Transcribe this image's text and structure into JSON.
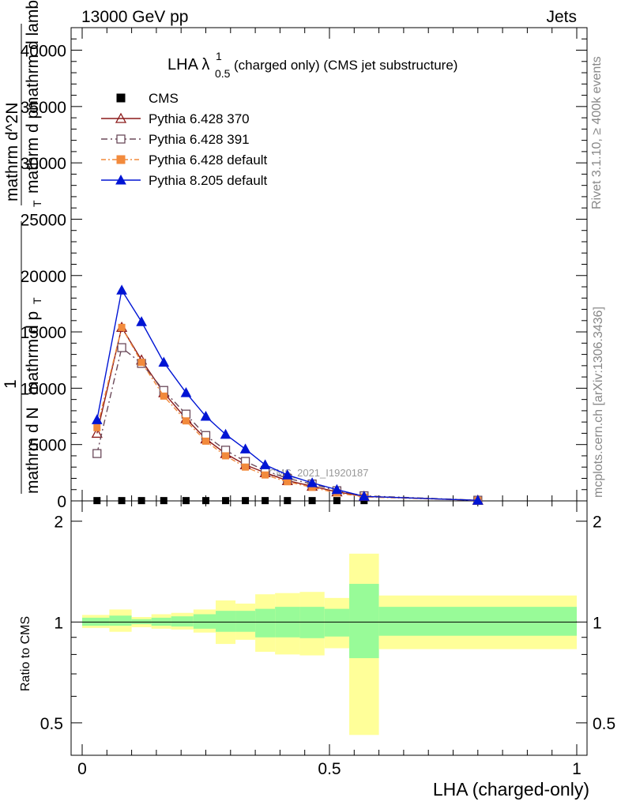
{
  "header": {
    "left": "13000 GeV pp",
    "right": "Jets"
  },
  "side_labels": {
    "rivet": "Rivet 3.1.10, ≥ 400k events",
    "mcplots": "mcplots.cern.ch [arXiv:1306.3436]"
  },
  "watermark": "CMS_2021_I1920187",
  "colors": {
    "cms": "#000000",
    "p6_370": "#8b1a1a",
    "p6_391": "#6b4a5a",
    "p6_default": "#f28a3c",
    "p8_default": "#0015d4",
    "band_inner": "#98fb98",
    "band_outer": "#ffff99"
  },
  "chart_data": [
    {
      "type": "line",
      "title": "LHA λ",
      "title_sup": "1",
      "title_sub": "0.5",
      "title_rest": " (charged only) (CMS jet substructure)",
      "ylabel_lines": [
        "1",
        "mathrm d N",
        "mathrm d p",
        "mathrm d p",
        "mathrm d^2N",
        "mathrm d lambda",
        "T",
        "T"
      ],
      "ylabel_display": [
        "mathrm d^{2}N",
        "mathrm d p_{T} mathrm d lambda",
        "1",
        "mathrm d N mathrm d p_{T}"
      ],
      "xlim": [
        0,
        1
      ],
      "ylim": [
        0,
        42000
      ],
      "yticks": [
        0,
        5000,
        10000,
        15000,
        20000,
        25000,
        30000,
        35000,
        40000
      ],
      "ytick_labels": [
        "0",
        "5000",
        "10000",
        "15000",
        "20000",
        "25000",
        "30000",
        "35000",
        "40000"
      ],
      "legend_position": "top-left",
      "x": [
        0.03,
        0.08,
        0.12,
        0.165,
        0.21,
        0.25,
        0.29,
        0.33,
        0.37,
        0.415,
        0.465,
        0.515,
        0.57,
        0.8
      ],
      "series": [
        {
          "name": "CMS",
          "marker": "square-filled",
          "values": [
            25,
            25,
            25,
            25,
            25,
            25,
            25,
            25,
            25,
            25,
            25,
            25,
            25,
            25
          ]
        },
        {
          "name": "Pythia 6.428 370",
          "marker": "triangle-open",
          "values": [
            6000,
            15400,
            12500,
            9600,
            7300,
            5500,
            4200,
            3200,
            2500,
            1800,
            1300,
            800,
            400,
            50
          ]
        },
        {
          "name": "Pythia 6.428 391",
          "marker": "square-open",
          "values": [
            4200,
            13600,
            12200,
            9800,
            7700,
            5800,
            4500,
            3500,
            2700,
            2000,
            1500,
            900,
            450,
            60
          ]
        },
        {
          "name": "Pythia 6.428 default",
          "marker": "square-filled",
          "values": [
            6500,
            15400,
            12300,
            9300,
            7100,
            5300,
            4000,
            3000,
            2300,
            1700,
            1200,
            700,
            350,
            40
          ]
        },
        {
          "name": "Pythia 8.205 default",
          "marker": "triangle-filled",
          "values": [
            7200,
            18700,
            15900,
            12300,
            9600,
            7500,
            5900,
            4600,
            3200,
            2300,
            1600,
            1000,
            400,
            50
          ]
        }
      ]
    },
    {
      "type": "area",
      "ylabel": "Ratio to CMS",
      "xlabel": "LHA (charged-only)",
      "xlim": [
        0,
        1
      ],
      "ylim": [
        0.4,
        2.3
      ],
      "scale": "log",
      "yticks": [
        0.5,
        1,
        2
      ],
      "ytick_labels": [
        "0.5",
        "1",
        "2"
      ],
      "xticks": [
        0,
        0.5,
        1
      ],
      "xtick_labels": [
        "0",
        "0.5",
        "1"
      ],
      "bins": [
        0,
        0.055,
        0.1,
        0.14,
        0.18,
        0.225,
        0.27,
        0.31,
        0.35,
        0.39,
        0.44,
        0.49,
        0.54,
        0.6,
        1.0
      ],
      "inner_band": [
        [
          0.975,
          1.03
        ],
        [
          0.975,
          1.045
        ],
        [
          0.985,
          1.02
        ],
        [
          0.975,
          1.03
        ],
        [
          0.97,
          1.04
        ],
        [
          0.955,
          1.055
        ],
        [
          0.935,
          1.08
        ],
        [
          0.935,
          1.08
        ],
        [
          0.9,
          1.095
        ],
        [
          0.9,
          1.11
        ],
        [
          0.895,
          1.11
        ],
        [
          0.905,
          1.095
        ],
        [
          0.78,
          1.3
        ],
        [
          0.91,
          1.11
        ]
      ],
      "outer_band": [
        [
          0.96,
          1.05
        ],
        [
          0.935,
          1.09
        ],
        [
          0.965,
          1.035
        ],
        [
          0.955,
          1.055
        ],
        [
          0.95,
          1.065
        ],
        [
          0.93,
          1.09
        ],
        [
          0.86,
          1.16
        ],
        [
          0.885,
          1.135
        ],
        [
          0.815,
          1.21
        ],
        [
          0.8,
          1.22
        ],
        [
          0.795,
          1.23
        ],
        [
          0.835,
          1.18
        ],
        [
          0.46,
          1.6
        ],
        [
          0.83,
          1.2
        ]
      ]
    }
  ]
}
